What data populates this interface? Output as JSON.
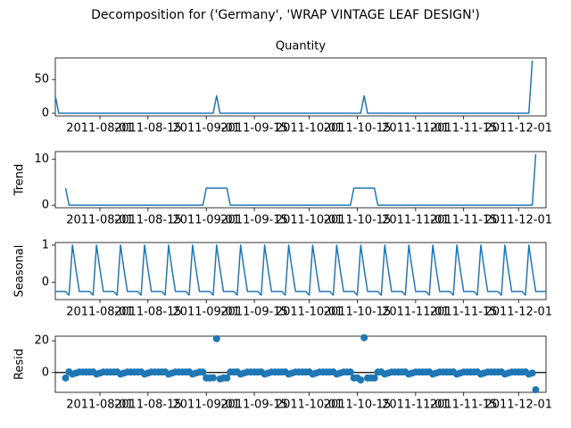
{
  "suptitle": "Decomposition for ('Germany', 'WRAP VINTAGE LEAF DESIGN')",
  "x": [
    "2011-07-19",
    "2011-07-20",
    "2011-07-21",
    "2011-07-22",
    "2011-07-23",
    "2011-07-24",
    "2011-07-25",
    "2011-07-26",
    "2011-07-27",
    "2011-07-28",
    "2011-07-29",
    "2011-07-30",
    "2011-07-31",
    "2011-08-01",
    "2011-08-02",
    "2011-08-03",
    "2011-08-04",
    "2011-08-05",
    "2011-08-06",
    "2011-08-07",
    "2011-08-08",
    "2011-08-09",
    "2011-08-10",
    "2011-08-11",
    "2011-08-12",
    "2011-08-13",
    "2011-08-14",
    "2011-08-15",
    "2011-08-16",
    "2011-08-17",
    "2011-08-18",
    "2011-08-19",
    "2011-08-20",
    "2011-08-21",
    "2011-08-22",
    "2011-08-23",
    "2011-08-24",
    "2011-08-25",
    "2011-08-26",
    "2011-08-27",
    "2011-08-28",
    "2011-08-29",
    "2011-08-30",
    "2011-08-31",
    "2011-09-01",
    "2011-09-02",
    "2011-09-03",
    "2011-09-04",
    "2011-09-05",
    "2011-09-06",
    "2011-09-07",
    "2011-09-08",
    "2011-09-09",
    "2011-09-10",
    "2011-09-11",
    "2011-09-12",
    "2011-09-13",
    "2011-09-14",
    "2011-09-15",
    "2011-09-16",
    "2011-09-17",
    "2011-09-18",
    "2011-09-19",
    "2011-09-20",
    "2011-09-21",
    "2011-09-22",
    "2011-09-23",
    "2011-09-24",
    "2011-09-25",
    "2011-09-26",
    "2011-09-27",
    "2011-09-28",
    "2011-09-29",
    "2011-09-30",
    "2011-10-01",
    "2011-10-02",
    "2011-10-03",
    "2011-10-04",
    "2011-10-05",
    "2011-10-06",
    "2011-10-07",
    "2011-10-08",
    "2011-10-09",
    "2011-10-10",
    "2011-10-11",
    "2011-10-12",
    "2011-10-13",
    "2011-10-14",
    "2011-10-15",
    "2011-10-16",
    "2011-10-17",
    "2011-10-18",
    "2011-10-19",
    "2011-10-20",
    "2011-10-21",
    "2011-10-22",
    "2011-10-23",
    "2011-10-24",
    "2011-10-25",
    "2011-10-26",
    "2011-10-27",
    "2011-10-28",
    "2011-10-29",
    "2011-10-30",
    "2011-10-31",
    "2011-11-01",
    "2011-11-02",
    "2011-11-03",
    "2011-11-04",
    "2011-11-05",
    "2011-11-06",
    "2011-11-07",
    "2011-11-08",
    "2011-11-09",
    "2011-11-10",
    "2011-11-11",
    "2011-11-12",
    "2011-11-13",
    "2011-11-14",
    "2011-11-15",
    "2011-11-16",
    "2011-11-17",
    "2011-11-18",
    "2011-11-19",
    "2011-11-20",
    "2011-11-21",
    "2011-11-22",
    "2011-11-23",
    "2011-11-24",
    "2011-11-25",
    "2011-11-26",
    "2011-11-27",
    "2011-11-28",
    "2011-11-29",
    "2011-11-30",
    "2011-12-01",
    "2011-12-02",
    "2011-12-03",
    "2011-12-04",
    "2011-12-05",
    "2011-12-06",
    "2011-12-07",
    "2011-12-08",
    "2011-12-09"
  ],
  "xlim": [
    "2011-07-19",
    "2011-12-09"
  ],
  "xticks": [
    "2011-08-01",
    "2011-08-15",
    "2011-09-01",
    "2011-09-15",
    "2011-10-01",
    "2011-10-15",
    "2011-11-01",
    "2011-11-15",
    "2011-12-01"
  ],
  "chart_data": [
    {
      "type": "line",
      "title": "Quantity",
      "color": "#1f77b4",
      "ylim": [
        -3.9,
        81.9
      ],
      "yticks": [
        0,
        50
      ],
      "values": [
        26,
        0,
        0,
        0,
        0,
        0,
        0,
        0,
        0,
        0,
        0,
        0,
        0,
        0,
        0,
        0,
        0,
        0,
        0,
        0,
        0,
        0,
        0,
        0,
        0,
        0,
        0,
        0,
        0,
        0,
        0,
        0,
        0,
        0,
        0,
        0,
        0,
        0,
        0,
        0,
        0,
        0,
        0,
        0,
        0,
        0,
        0,
        26,
        0,
        0,
        0,
        0,
        0,
        0,
        0,
        0,
        0,
        0,
        0,
        0,
        0,
        0,
        0,
        0,
        0,
        0,
        0,
        0,
        0,
        0,
        0,
        0,
        0,
        0,
        0,
        0,
        0,
        0,
        0,
        0,
        0,
        0,
        0,
        0,
        0,
        0,
        0,
        0,
        0,
        0,
        26,
        0,
        0,
        0,
        0,
        0,
        0,
        0,
        0,
        0,
        0,
        0,
        0,
        0,
        0,
        0,
        0,
        0,
        0,
        0,
        0,
        0,
        0,
        0,
        0,
        0,
        0,
        0,
        0,
        0,
        0,
        0,
        0,
        0,
        0,
        0,
        0,
        0,
        0,
        0,
        0,
        0,
        0,
        0,
        0,
        0,
        0,
        0,
        0,
        78
      ]
    },
    {
      "type": "line",
      "ylabel": "Trend",
      "color": "#1f77b4",
      "ylim": [
        -0.56,
        11.7
      ],
      "yticks": [
        0,
        10
      ],
      "values": [
        null,
        null,
        null,
        3.71,
        0,
        0,
        0,
        0,
        0,
        0,
        0,
        0,
        0,
        0,
        0,
        0,
        0,
        0,
        0,
        0,
        0,
        0,
        0,
        0,
        0,
        0,
        0,
        0,
        0,
        0,
        0,
        0,
        0,
        0,
        0,
        0,
        0,
        0,
        0,
        0,
        0,
        0,
        0,
        0,
        3.71,
        3.71,
        3.71,
        3.71,
        3.71,
        3.71,
        3.71,
        0,
        0,
        0,
        0,
        0,
        0,
        0,
        0,
        0,
        0,
        0,
        0,
        0,
        0,
        0,
        0,
        0,
        0,
        0,
        0,
        0,
        0,
        0,
        0,
        0,
        0,
        0,
        0,
        0,
        0,
        0,
        0,
        0,
        0,
        0,
        0,
        3.71,
        3.71,
        3.71,
        3.71,
        3.71,
        3.71,
        3.71,
        0,
        0,
        0,
        0,
        0,
        0,
        0,
        0,
        0,
        0,
        0,
        0,
        0,
        0,
        0,
        0,
        0,
        0,
        0,
        0,
        0,
        0,
        0,
        0,
        0,
        0,
        0,
        0,
        0,
        0,
        0,
        0,
        0,
        0,
        0,
        0,
        0,
        0,
        0,
        0,
        0,
        0,
        0,
        0,
        0,
        0,
        11.14,
        null,
        null,
        null
      ]
    },
    {
      "type": "line",
      "ylabel": "Seasonal",
      "color": "#1f77b4",
      "ylim": [
        -0.47,
        1.07
      ],
      "yticks": [
        0,
        1
      ],
      "values": [
        -0.25,
        -0.25,
        -0.25,
        -0.25,
        -0.35,
        1,
        0.35,
        -0.25,
        -0.25,
        -0.25,
        -0.25,
        -0.35,
        1,
        0.35,
        -0.25,
        -0.25,
        -0.25,
        -0.25,
        -0.35,
        1,
        0.35,
        -0.25,
        -0.25,
        -0.25,
        -0.25,
        -0.35,
        1,
        0.35,
        -0.25,
        -0.25,
        -0.25,
        -0.25,
        -0.35,
        1,
        0.35,
        -0.25,
        -0.25,
        -0.25,
        -0.25,
        -0.35,
        1,
        0.35,
        -0.25,
        -0.25,
        -0.25,
        -0.25,
        -0.35,
        1,
        0.35,
        -0.25,
        -0.25,
        -0.25,
        -0.25,
        -0.35,
        1,
        0.35,
        -0.25,
        -0.25,
        -0.25,
        -0.25,
        -0.35,
        1,
        0.35,
        -0.25,
        -0.25,
        -0.25,
        -0.25,
        -0.35,
        1,
        0.35,
        -0.25,
        -0.25,
        -0.25,
        -0.25,
        -0.35,
        1,
        0.35,
        -0.25,
        -0.25,
        -0.25,
        -0.25,
        -0.35,
        1,
        0.35,
        -0.25,
        -0.25,
        -0.25,
        -0.25,
        -0.35,
        1,
        0.35,
        -0.25,
        -0.25,
        -0.25,
        -0.25,
        -0.35,
        1,
        0.35,
        -0.25,
        -0.25,
        -0.25,
        -0.25,
        -0.35,
        1,
        0.35,
        -0.25,
        -0.25,
        -0.25,
        -0.25,
        -0.35,
        1,
        0.35,
        -0.25,
        -0.25,
        -0.25,
        -0.25,
        -0.35,
        1,
        0.35,
        -0.25,
        -0.25,
        -0.25,
        -0.25,
        -0.35,
        1,
        0.35,
        -0.25,
        -0.25,
        -0.25,
        -0.25,
        -0.35,
        1,
        0.35,
        -0.25,
        -0.25,
        -0.25,
        -0.25,
        -0.35,
        1,
        0.35,
        -0.25,
        -0.25,
        -0.25,
        -0.25
      ]
    },
    {
      "type": "scatter",
      "ylabel": "Resid",
      "color": "#1f77b4",
      "ylim": [
        -12.5,
        22.9
      ],
      "yticks": [
        0,
        20
      ],
      "values": [
        null,
        null,
        null,
        -3.45,
        0.35,
        -1,
        -0.35,
        0.25,
        0.25,
        0.25,
        0.25,
        0.35,
        -1,
        -0.35,
        0.25,
        0.25,
        0.25,
        0.25,
        0.35,
        -1,
        -0.35,
        0.25,
        0.25,
        0.25,
        0.25,
        0.35,
        -1,
        -0.35,
        0.25,
        0.25,
        0.25,
        0.25,
        0.35,
        -1,
        -0.35,
        0.25,
        0.25,
        0.25,
        0.25,
        0.35,
        -1,
        -0.35,
        0.25,
        0.25,
        -3.45,
        -3.45,
        -3.35,
        21.3,
        -4.05,
        -3.45,
        -3.45,
        0.25,
        0.25,
        0.35,
        -1,
        -0.35,
        0.25,
        0.25,
        0.25,
        0.25,
        0.35,
        -1,
        -0.35,
        0.25,
        0.25,
        0.25,
        0.25,
        0.35,
        -1,
        -0.35,
        0.25,
        0.25,
        0.25,
        0.25,
        0.35,
        -1,
        -0.35,
        0.25,
        0.25,
        0.25,
        0.25,
        0.35,
        -1,
        -0.35,
        0.25,
        0.25,
        0.25,
        -3.45,
        -3.35,
        -4.7,
        21.95,
        -3.45,
        -3.45,
        -3.45,
        0.25,
        0.35,
        -1,
        -0.35,
        0.25,
        0.25,
        0.25,
        0.25,
        0.35,
        -1,
        -0.35,
        0.25,
        0.25,
        0.25,
        0.25,
        0.35,
        -1,
        -0.35,
        0.25,
        0.25,
        0.25,
        0.25,
        0.35,
        -1,
        -0.35,
        0.25,
        0.25,
        0.25,
        0.25,
        0.35,
        -1,
        -0.35,
        0.25,
        0.25,
        0.25,
        0.25,
        0.35,
        -1,
        -0.35,
        0.25,
        0.25,
        0.25,
        0.25,
        0.35,
        -1,
        -0.35,
        -10.85,
        null,
        null,
        null
      ]
    }
  ]
}
